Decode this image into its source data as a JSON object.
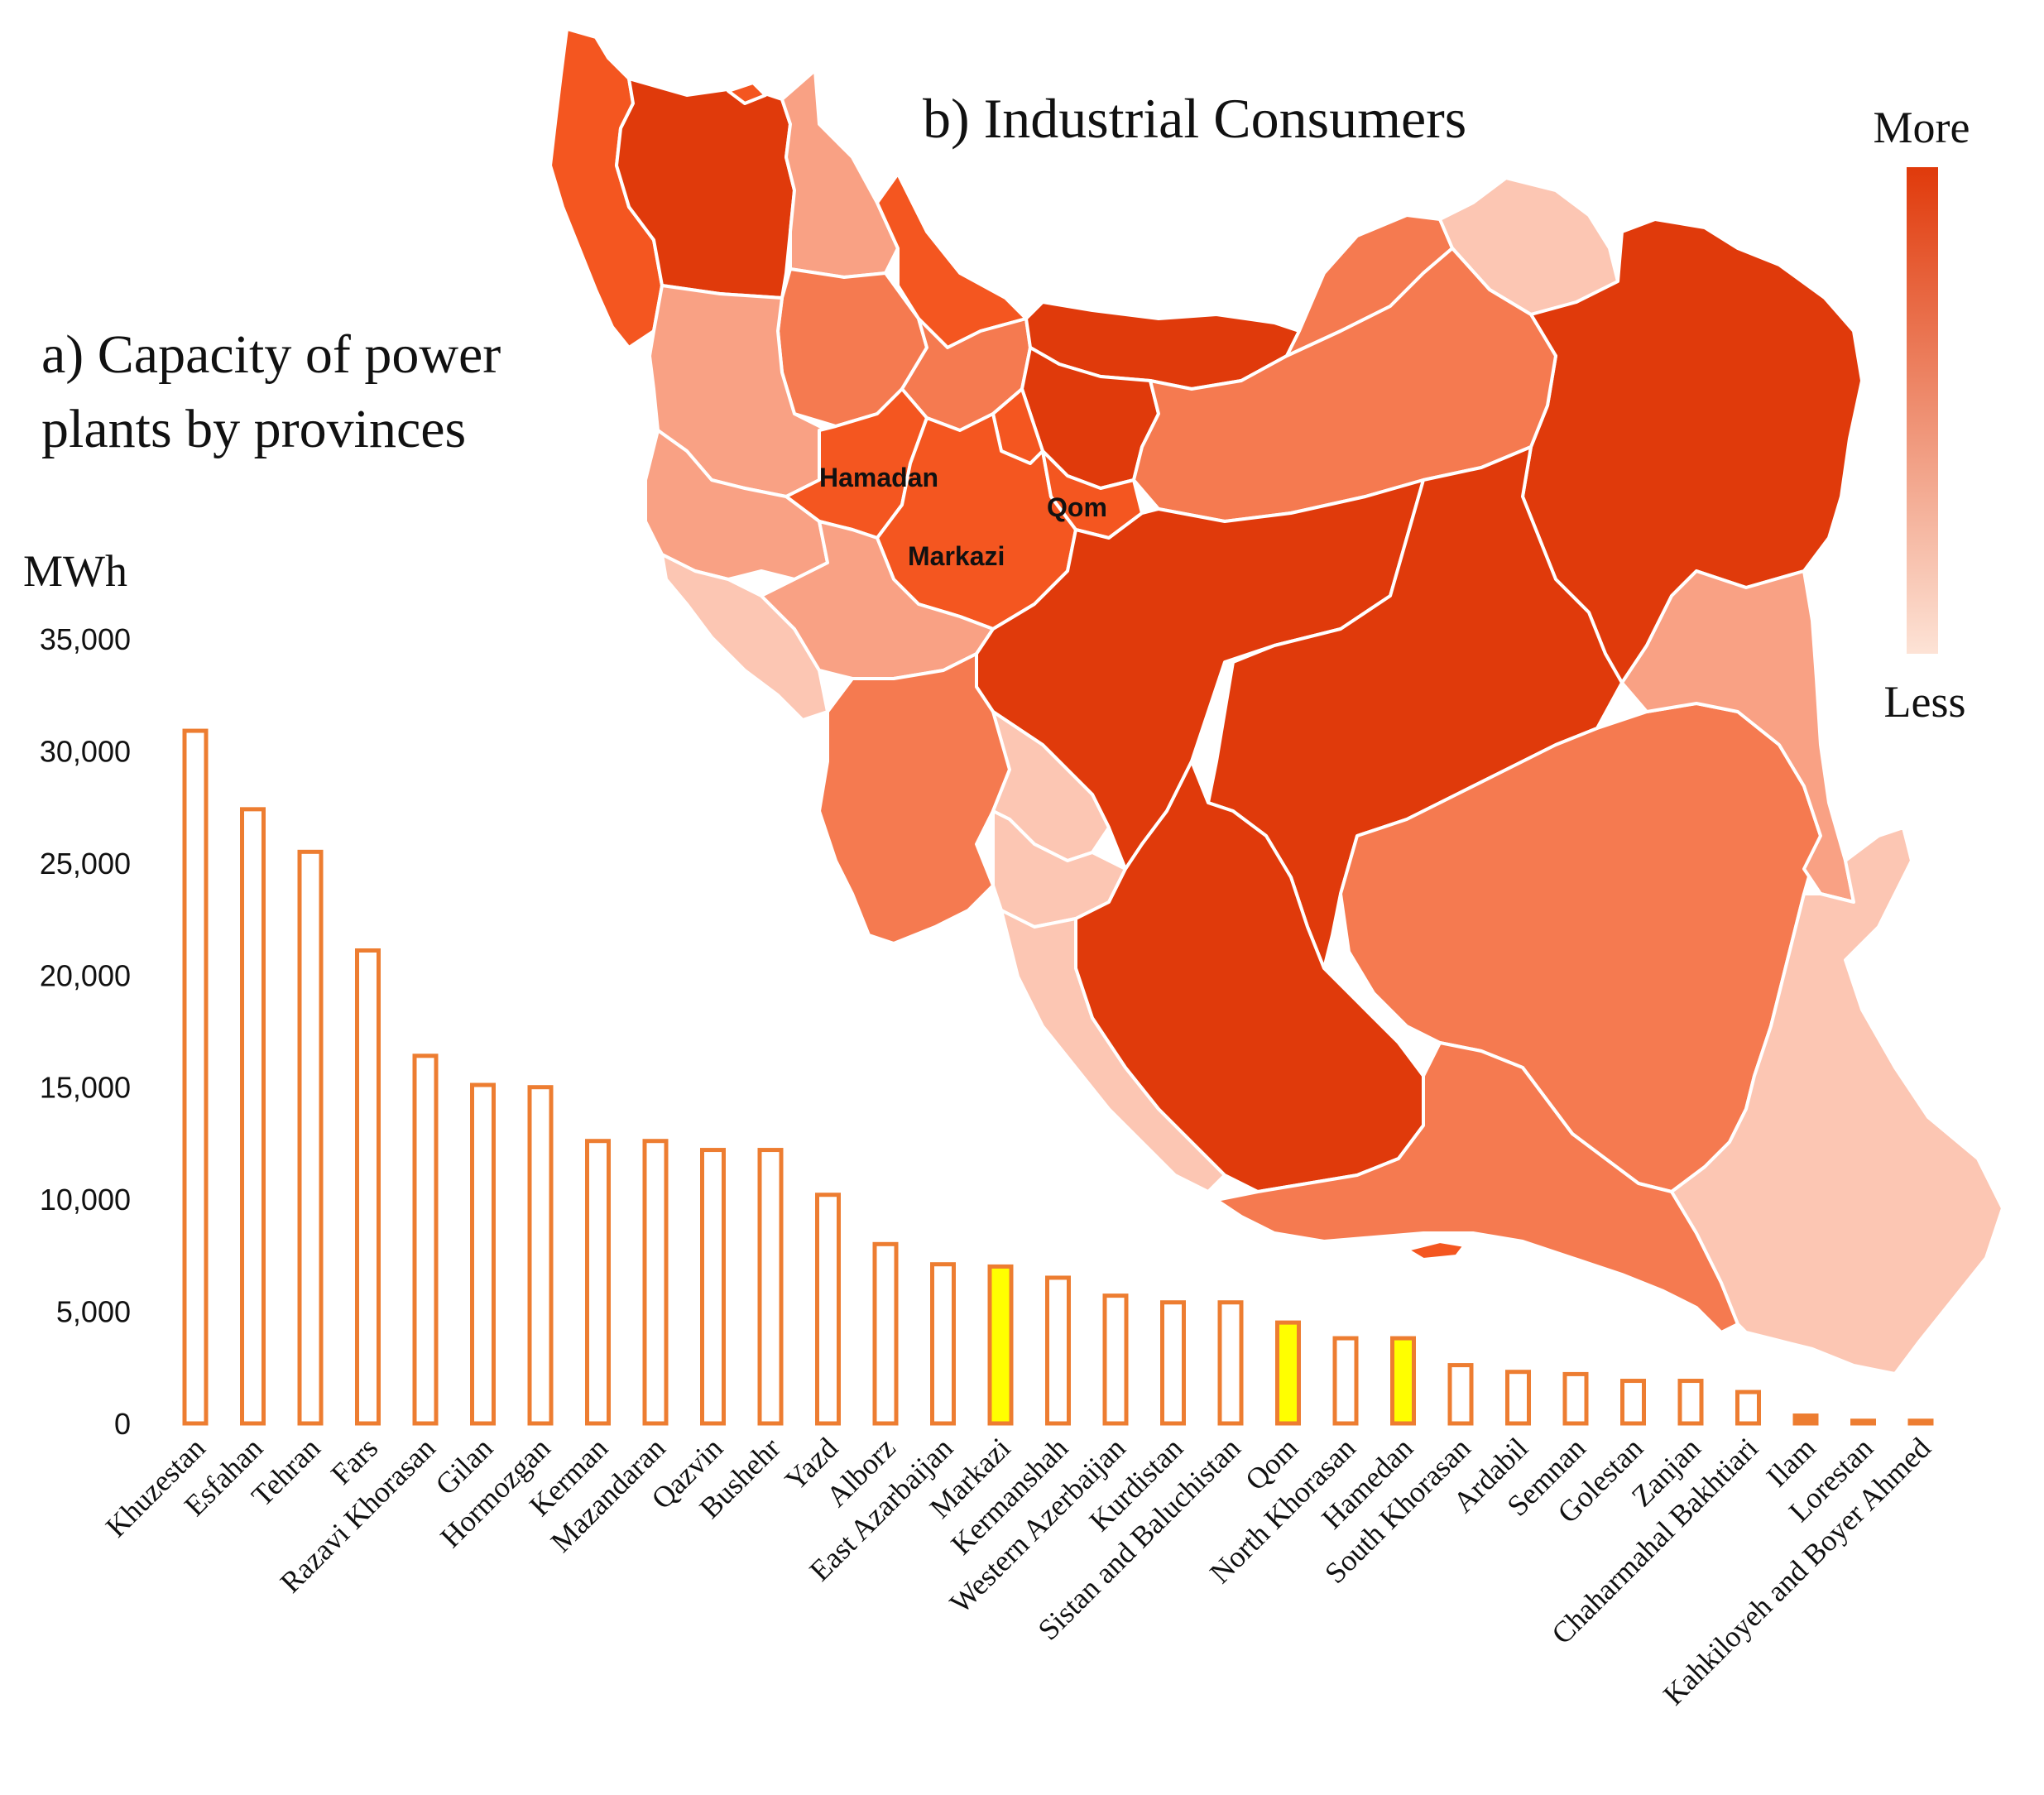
{
  "map": {
    "title": "b) Industrial Consumers",
    "labels": [
      "Hamadan",
      "Qom",
      "Markazi"
    ],
    "legend": {
      "more": "More",
      "less": "Less"
    },
    "colors": {
      "c1": "#e03a0b",
      "c2": "#f45620",
      "c3": "#f57a50",
      "c4": "#f9a184",
      "c5": "#fcc6b3"
    }
  },
  "chart_data": {
    "type": "bar",
    "title": "a) Capacity of power plants by provinces",
    "title_lines": [
      "a) Capacity of power",
      "plants by provinces"
    ],
    "ylabel": "MWh",
    "ylim": [
      0,
      35000
    ],
    "yticks": [
      0,
      5000,
      10000,
      15000,
      20000,
      25000,
      30000,
      35000
    ],
    "ytick_labels": [
      "0",
      "5,000",
      "10,000",
      "15,000",
      "20,000",
      "25,000",
      "30,000",
      "35,000"
    ],
    "grid": false,
    "categories": [
      "Khuzestan",
      "Esfahan",
      "Tehran",
      "Fars",
      "Razavi Khorasan",
      "Gilan",
      "Hormozgan",
      "Kerman",
      "Mazandaran",
      "Qazvin",
      "Bushehr",
      "Yazd",
      "Alborz",
      "East Azarbaijan",
      "Markazi",
      "Kermanshah",
      "Western Azerbaijan",
      "Kurdistan",
      "Sistan and Baluchistan",
      "Qom",
      "North Khorasan",
      "Hamedan",
      "South Khorasan",
      "Ardabil",
      "Semnan",
      "Golestan",
      "Zanjan",
      "Chaharmahal Bakhtiari",
      "Ilam",
      "Lorestan",
      "Kahkiloyeh and Boyer Ahmed"
    ],
    "values": [
      30900,
      27400,
      25500,
      21100,
      16400,
      15100,
      15000,
      12600,
      12600,
      12200,
      12200,
      10200,
      8000,
      7100,
      7000,
      6500,
      5700,
      5400,
      5400,
      4500,
      3800,
      3800,
      2600,
      2300,
      2200,
      1900,
      1900,
      1400,
      350,
      120,
      120
    ],
    "highlighted": [
      "Markazi",
      "Qom",
      "Hamedan"
    ],
    "colors": {
      "bar_outline": "#ed7d31",
      "bar_fill": "#ffffff",
      "highlight_fill": "#ffff00"
    }
  }
}
